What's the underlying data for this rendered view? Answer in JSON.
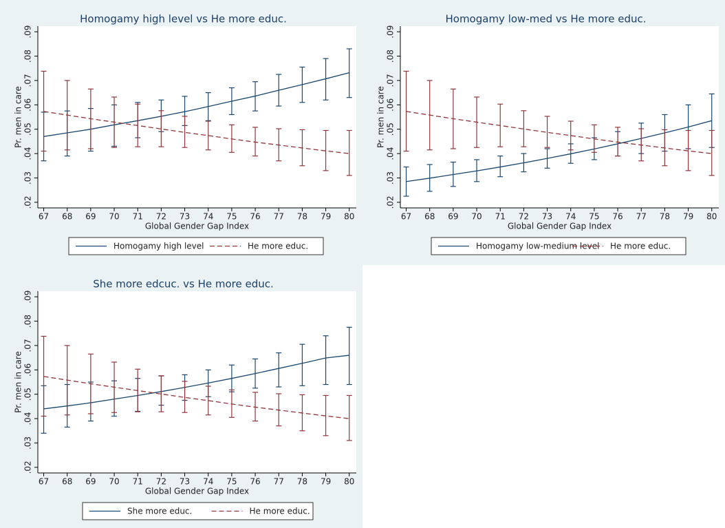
{
  "chart_data": [
    {
      "type": "line",
      "title": "Homogamy high level vs He more educ.",
      "xlabel": "Global Gender Gap Index",
      "ylabel": "Pr. men in care",
      "xlim": [
        66.75,
        80.3
      ],
      "ylim": [
        0.0177,
        0.0923
      ],
      "xticks": [
        67,
        68,
        69,
        70,
        71,
        72,
        73,
        74,
        75,
        76,
        77,
        78,
        79,
        80
      ],
      "yticks": [
        {
          "value": 0.02,
          "label": ".02"
        },
        {
          "value": 0.03,
          "label": ".03"
        },
        {
          "value": 0.04,
          "label": ".04"
        },
        {
          "value": 0.05,
          "label": ".05"
        },
        {
          "value": 0.06,
          "label": ".06"
        },
        {
          "value": 0.07,
          "label": ".07"
        },
        {
          "value": 0.08,
          "label": ".08"
        },
        {
          "value": 0.09,
          "label": ".09"
        }
      ],
      "x": [
        67,
        68,
        69,
        70,
        71,
        72,
        73,
        74,
        75,
        76,
        77,
        78,
        79,
        80
      ],
      "series": [
        {
          "name": "Homogamy high level",
          "color": "#1a476f",
          "dash": "solid",
          "values": [
            0.047,
            0.0485,
            0.05,
            0.0518,
            0.0535,
            0.0553,
            0.0572,
            0.0593,
            0.0615,
            0.0636,
            0.066,
            0.0683,
            0.0707,
            0.0732
          ],
          "ci_low": [
            0.037,
            0.039,
            0.041,
            0.043,
            0.0465,
            0.049,
            0.0515,
            0.0535,
            0.056,
            0.0575,
            0.0595,
            0.061,
            0.062,
            0.063
          ],
          "ci_high": [
            0.057,
            0.0575,
            0.0585,
            0.06,
            0.061,
            0.062,
            0.0635,
            0.065,
            0.067,
            0.0695,
            0.0725,
            0.0755,
            0.079,
            0.083
          ]
        },
        {
          "name": "He more educ.",
          "color": "#90353b",
          "dash": "dashed",
          "values": [
            0.0573,
            0.0558,
            0.0543,
            0.0529,
            0.0515,
            0.0501,
            0.0487,
            0.0474,
            0.046,
            0.0447,
            0.0435,
            0.0423,
            0.0411,
            0.04
          ],
          "ci_low": [
            0.041,
            0.0415,
            0.042,
            0.0425,
            0.0428,
            0.0428,
            0.0425,
            0.0415,
            0.0405,
            0.039,
            0.037,
            0.035,
            0.033,
            0.031
          ],
          "ci_high": [
            0.0738,
            0.07,
            0.0665,
            0.0632,
            0.0603,
            0.0576,
            0.0553,
            0.0533,
            0.0518,
            0.0508,
            0.0502,
            0.0498,
            0.0495,
            0.0495
          ]
        }
      ]
    },
    {
      "type": "line",
      "title": "Homogamy low-med vs He more educ.",
      "xlabel": "Global Gender Gap Index",
      "ylabel": "Pr. men in care",
      "xlim": [
        66.75,
        80.3
      ],
      "ylim": [
        0.0177,
        0.0923
      ],
      "xticks": [
        67,
        68,
        69,
        70,
        71,
        72,
        73,
        74,
        75,
        76,
        77,
        78,
        79,
        80
      ],
      "yticks": [
        {
          "value": 0.02,
          "label": ".02"
        },
        {
          "value": 0.03,
          "label": ".03"
        },
        {
          "value": 0.04,
          "label": ".04"
        },
        {
          "value": 0.05,
          "label": ".05"
        },
        {
          "value": 0.06,
          "label": ".06"
        },
        {
          "value": 0.07,
          "label": ".07"
        },
        {
          "value": 0.08,
          "label": ".08"
        },
        {
          "value": 0.09,
          "label": ".09"
        }
      ],
      "x": [
        67,
        68,
        69,
        70,
        71,
        72,
        73,
        74,
        75,
        76,
        77,
        78,
        79,
        80
      ],
      "series": [
        {
          "name": "Homogamy low-medium level",
          "color": "#1a476f",
          "dash": "solid",
          "values": [
            0.0285,
            0.0299,
            0.0314,
            0.0329,
            0.0345,
            0.0362,
            0.038,
            0.0399,
            0.0419,
            0.044,
            0.0462,
            0.0485,
            0.0509,
            0.0535
          ],
          "ci_low": [
            0.0225,
            0.0245,
            0.0265,
            0.0285,
            0.0305,
            0.0325,
            0.034,
            0.036,
            0.0375,
            0.039,
            0.04,
            0.041,
            0.042,
            0.0425
          ],
          "ci_high": [
            0.0345,
            0.0355,
            0.0365,
            0.0375,
            0.039,
            0.04,
            0.042,
            0.044,
            0.0465,
            0.049,
            0.0525,
            0.056,
            0.06,
            0.0645
          ]
        },
        {
          "name": "He more educ.",
          "color": "#90353b",
          "dash": "dashed",
          "values": [
            0.0573,
            0.0558,
            0.0543,
            0.0529,
            0.0515,
            0.0501,
            0.0487,
            0.0474,
            0.046,
            0.0447,
            0.0435,
            0.0423,
            0.0411,
            0.04
          ],
          "ci_low": [
            0.041,
            0.0415,
            0.042,
            0.0425,
            0.0428,
            0.0428,
            0.0425,
            0.0415,
            0.0405,
            0.039,
            0.037,
            0.035,
            0.033,
            0.031
          ],
          "ci_high": [
            0.0738,
            0.07,
            0.0665,
            0.0632,
            0.0603,
            0.0576,
            0.0553,
            0.0533,
            0.0518,
            0.0508,
            0.0502,
            0.0498,
            0.0495,
            0.0495
          ]
        }
      ]
    },
    {
      "type": "line",
      "title": "She more edcuc. vs He more educ.",
      "xlabel": "Global Gender Gap Index",
      "ylabel": "Pr. men in care",
      "xlim": [
        66.75,
        80.3
      ],
      "ylim": [
        0.0177,
        0.0923
      ],
      "xticks": [
        67,
        68,
        69,
        70,
        71,
        72,
        73,
        74,
        75,
        76,
        77,
        78,
        79,
        80
      ],
      "yticks": [
        {
          "value": 0.02,
          "label": ".02"
        },
        {
          "value": 0.03,
          "label": ".03"
        },
        {
          "value": 0.04,
          "label": ".04"
        },
        {
          "value": 0.05,
          "label": ".05"
        },
        {
          "value": 0.06,
          "label": ".06"
        },
        {
          "value": 0.07,
          "label": ".07"
        },
        {
          "value": 0.08,
          "label": ".08"
        },
        {
          "value": 0.09,
          "label": ".09"
        }
      ],
      "x": [
        67,
        68,
        69,
        70,
        71,
        72,
        73,
        74,
        75,
        76,
        77,
        78,
        79,
        80
      ],
      "series": [
        {
          "name": "She more educ.",
          "color": "#1a476f",
          "dash": "solid",
          "values": [
            0.044,
            0.0452,
            0.0465,
            0.048,
            0.0495,
            0.0511,
            0.0528,
            0.0546,
            0.0565,
            0.0585,
            0.0606,
            0.0627,
            0.0649,
            0.066
          ],
          "ci_low": [
            0.034,
            0.0365,
            0.039,
            0.041,
            0.043,
            0.0455,
            0.0475,
            0.049,
            0.051,
            0.0525,
            0.053,
            0.0535,
            0.054,
            0.054
          ],
          "ci_high": [
            0.0535,
            0.054,
            0.055,
            0.0555,
            0.0565,
            0.0575,
            0.058,
            0.06,
            0.062,
            0.0645,
            0.067,
            0.0705,
            0.074,
            0.0775
          ]
        },
        {
          "name": "He more educ.",
          "color": "#90353b",
          "dash": "dashed",
          "values": [
            0.0573,
            0.0558,
            0.0543,
            0.0529,
            0.0515,
            0.0501,
            0.0487,
            0.0474,
            0.046,
            0.0447,
            0.0435,
            0.0423,
            0.0411,
            0.04
          ],
          "ci_low": [
            0.041,
            0.0415,
            0.042,
            0.0425,
            0.0428,
            0.0428,
            0.0425,
            0.0415,
            0.0405,
            0.039,
            0.037,
            0.035,
            0.033,
            0.031
          ],
          "ci_high": [
            0.0738,
            0.07,
            0.0665,
            0.0632,
            0.0603,
            0.0576,
            0.0553,
            0.0533,
            0.0518,
            0.0508,
            0.0502,
            0.0498,
            0.0495,
            0.0495
          ]
        }
      ]
    }
  ]
}
